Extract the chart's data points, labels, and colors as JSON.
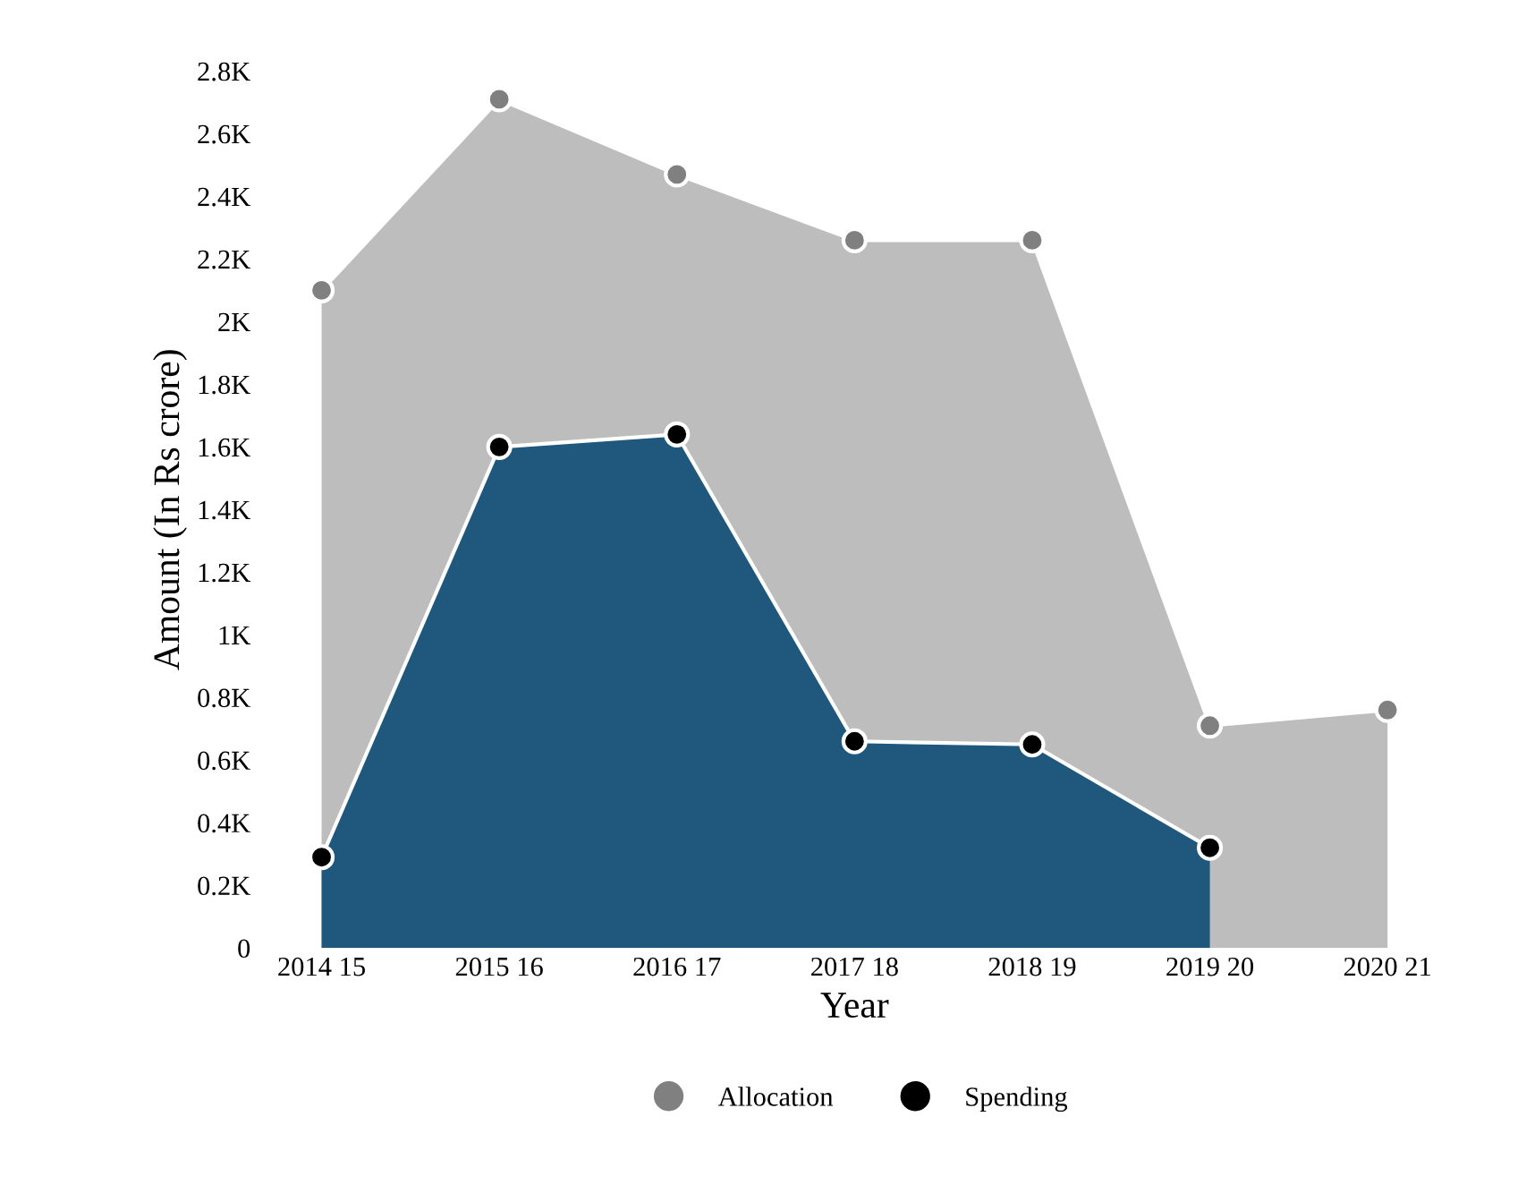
{
  "chart_data": {
    "type": "area",
    "xlabel": "Year",
    "ylabel": "Amount (In Rs crore)",
    "categories": [
      "2014 15",
      "2015 16",
      "2016 17",
      "2017 18",
      "2018 19",
      "2019 20",
      "2020 21"
    ],
    "series": [
      {
        "name": "Allocation",
        "color": "#bdbdbd",
        "values": [
          2100,
          2710,
          2470,
          2260,
          2260,
          710,
          760
        ]
      },
      {
        "name": "Spending",
        "color": "#1f587c",
        "values": [
          290,
          1600,
          1640,
          660,
          650,
          320,
          null
        ]
      }
    ],
    "ylim": [
      0,
      2800
    ],
    "yticks": [
      0,
      {
        "value": 200,
        "label": "0.2K"
      },
      {
        "value": 400,
        "label": "0.4K"
      },
      {
        "value": 600,
        "label": "0.6K"
      },
      {
        "value": 800,
        "label": "0.8K"
      },
      {
        "value": 1000,
        "label": "1K"
      },
      {
        "value": 1200,
        "label": "1.2K"
      },
      {
        "value": 1400,
        "label": "1.4K"
      },
      {
        "value": 1600,
        "label": "1.6K"
      },
      {
        "value": 1800,
        "label": "1.8K"
      },
      {
        "value": 2000,
        "label": "2K"
      },
      {
        "value": 2200,
        "label": "2.2K"
      },
      {
        "value": 2400,
        "label": "2.4K"
      },
      {
        "value": 2600,
        "label": "2.6K"
      },
      {
        "value": 2800,
        "label": "2.8K"
      }
    ],
    "marker": "circle",
    "grid": false,
    "legend": "bottom"
  }
}
